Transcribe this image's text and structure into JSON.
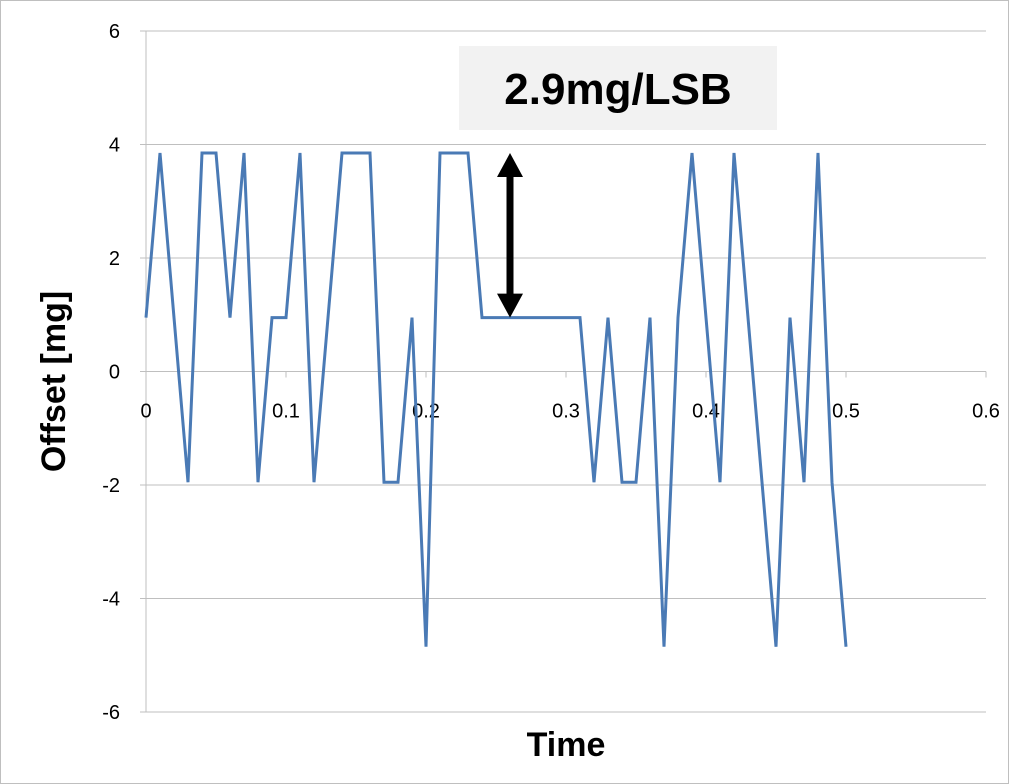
{
  "chart_data": {
    "type": "line",
    "title": "",
    "xlabel": "Time",
    "ylabel": "Offset [mg]",
    "xlim": [
      0,
      0.6
    ],
    "ylim": [
      -6,
      6
    ],
    "x_ticks": [
      0,
      0.1,
      0.2,
      0.3,
      0.4,
      0.5,
      0.6
    ],
    "x_tick_labels": [
      "0",
      "0.1",
      "0.2",
      "0.3",
      "0.4",
      "0.5",
      "0.6"
    ],
    "y_ticks": [
      6,
      4,
      2,
      0,
      -2,
      -4,
      -6
    ],
    "y_tick_labels": [
      "6",
      "4",
      "2",
      "0",
      "-2",
      "-4",
      "-6"
    ],
    "grid": true,
    "legend": "none",
    "series": [
      {
        "color": "#4a7ab5",
        "x": [
          0,
          0.01,
          0.02,
          0.03,
          0.04,
          0.05,
          0.06,
          0.07,
          0.08,
          0.09,
          0.1,
          0.11,
          0.12,
          0.13,
          0.14,
          0.15,
          0.16,
          0.17,
          0.18,
          0.19,
          0.2,
          0.21,
          0.22,
          0.23,
          0.24,
          0.25,
          0.26,
          0.27,
          0.28,
          0.29,
          0.3,
          0.31,
          0.32,
          0.33,
          0.34,
          0.35,
          0.36,
          0.37,
          0.38,
          0.39,
          0.4,
          0.41,
          0.42,
          0.43,
          0.44,
          0.45,
          0.46,
          0.47,
          0.48,
          0.49,
          0.5
        ],
        "y": [
          0.95,
          3.85,
          0.95,
          -1.95,
          3.85,
          3.85,
          0.95,
          3.85,
          -1.95,
          0.95,
          0.95,
          3.85,
          -1.95,
          0.95,
          3.85,
          3.85,
          3.85,
          -1.95,
          -1.95,
          0.95,
          -4.85,
          3.85,
          3.85,
          3.85,
          0.95,
          0.95,
          0.95,
          0.95,
          0.95,
          0.95,
          0.95,
          0.95,
          -1.95,
          0.95,
          -1.95,
          -1.95,
          0.95,
          -4.85,
          0.95,
          3.85,
          0.95,
          -1.95,
          3.85,
          0.95,
          -1.95,
          -4.85,
          0.95,
          -1.95,
          3.85,
          -1.95,
          -4.85
        ]
      }
    ],
    "annotations": [
      {
        "text": "2.9mg/LSB",
        "box_color": "#f2f2f2",
        "arrow_x": 0.26,
        "arrow_y_from": 0.95,
        "arrow_y_to": 3.85
      }
    ]
  }
}
